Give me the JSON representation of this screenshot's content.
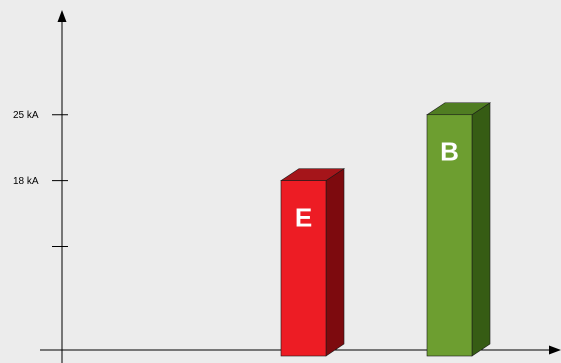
{
  "chart_data": {
    "type": "bar",
    "title": "",
    "xlabel": "",
    "ylabel": "",
    "ylim": [
      0,
      35.6
    ],
    "y_ticks": [
      {
        "value": 11,
        "label": ""
      },
      {
        "value": 18,
        "label": "18 kA"
      },
      {
        "value": 25,
        "label": "25 kA"
      }
    ],
    "bars": [
      {
        "label": "E",
        "value": 18,
        "colors": {
          "front": "#ed1c24",
          "side": "#7d0a0e",
          "top": "#a5151a"
        }
      },
      {
        "label": "B",
        "value": 25,
        "colors": {
          "front": "#6d9e30",
          "side": "#365c14",
          "top": "#507d22"
        }
      }
    ],
    "grid": false,
    "legend": "none"
  },
  "colors": {
    "background": "#ececec",
    "axis": "#000000"
  }
}
